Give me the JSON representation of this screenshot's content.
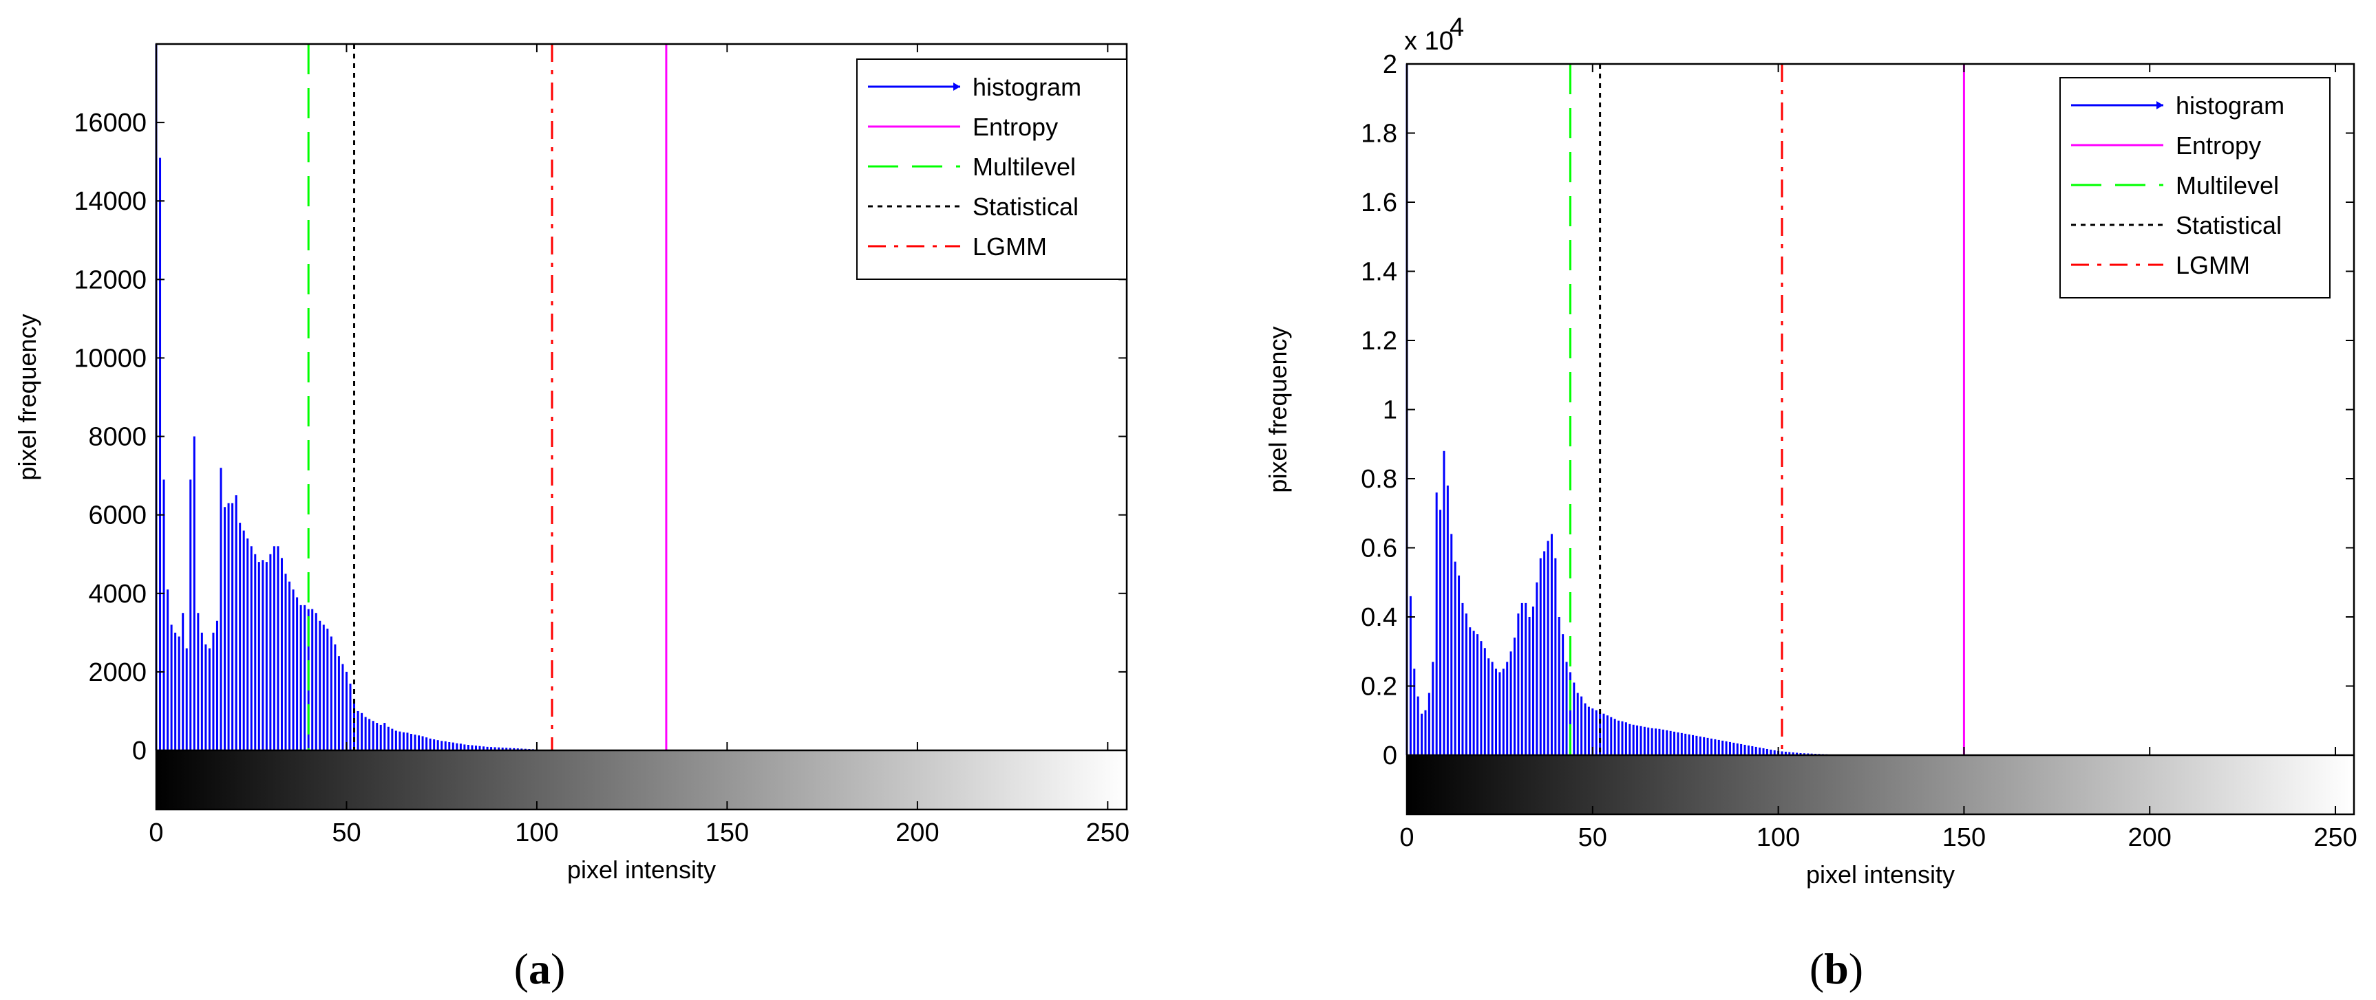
{
  "panels": [
    {
      "label_open": "(",
      "label_letter": "a",
      "label_close": ")"
    },
    {
      "label_open": "(",
      "label_letter": "b",
      "label_close": ")"
    }
  ],
  "chart_data": [
    {
      "type": "bar",
      "subtype": "histogram with vertical threshold lines and grayscale colorbar",
      "panel": "a",
      "xlabel": "pixel intensity",
      "ylabel": "pixel frequency",
      "xlim": [
        0,
        255
      ],
      "ylim": [
        0,
        18000
      ],
      "x_ticks": [
        0,
        50,
        100,
        150,
        200,
        250
      ],
      "y_ticks": [
        0,
        2000,
        4000,
        6000,
        8000,
        10000,
        12000,
        14000,
        16000
      ],
      "y_tick_labels": [
        "0",
        "2000",
        "4000",
        "6000",
        "8000",
        "10000",
        "12000",
        "14000",
        "16000"
      ],
      "y_exponent_label": "",
      "grid": false,
      "legend_position": "top-right",
      "histogram": {
        "name": "histogram",
        "color": "#0000ff",
        "x": [
          0,
          1,
          2,
          3,
          4,
          5,
          6,
          7,
          8,
          9,
          10,
          11,
          12,
          13,
          14,
          15,
          16,
          17,
          18,
          19,
          20,
          21,
          22,
          23,
          24,
          25,
          26,
          27,
          28,
          29,
          30,
          31,
          32,
          33,
          34,
          35,
          36,
          37,
          38,
          39,
          40,
          41,
          42,
          43,
          44,
          45,
          46,
          47,
          48,
          49,
          50,
          51,
          52,
          53,
          54,
          55,
          56,
          57,
          58,
          59,
          60,
          61,
          62,
          63,
          64,
          65,
          66,
          67,
          68,
          69,
          70,
          71,
          72,
          73,
          74,
          75,
          76,
          77,
          78,
          79,
          80,
          81,
          82,
          83,
          84,
          85,
          86,
          87,
          88,
          89,
          90,
          91,
          92,
          93,
          94,
          95,
          96,
          97,
          98,
          99,
          100
        ],
        "values": [
          18000,
          15100,
          6900,
          4100,
          3200,
          3000,
          2900,
          3500,
          2600,
          6900,
          8000,
          3500,
          3000,
          2700,
          2600,
          3000,
          3300,
          7200,
          6200,
          6300,
          6300,
          6500,
          5800,
          5600,
          5400,
          5200,
          5000,
          4800,
          4850,
          4800,
          5000,
          5200,
          5200,
          4900,
          4500,
          4300,
          4100,
          3900,
          3700,
          3700,
          3600,
          3600,
          3500,
          3300,
          3200,
          3100,
          2900,
          2700,
          2400,
          2200,
          2000,
          1700,
          1300,
          1000,
          950,
          850,
          800,
          750,
          700,
          650,
          700,
          600,
          550,
          500,
          480,
          460,
          450,
          420,
          400,
          380,
          360,
          330,
          300,
          280,
          260,
          240,
          230,
          210,
          200,
          180,
          170,
          150,
          140,
          130,
          120,
          110,
          100,
          90,
          85,
          80,
          75,
          70,
          65,
          60,
          55,
          50,
          45,
          40,
          35,
          30,
          25
        ]
      },
      "thresholds": [
        {
          "name": "Entropy",
          "x": 134,
          "color": "#ff00ff",
          "style": "solid"
        },
        {
          "name": "Multilevel",
          "x": 40,
          "color": "#00ff00",
          "style": "dashed"
        },
        {
          "name": "Statistical",
          "x": 52,
          "color": "#000000",
          "style": "dotted"
        },
        {
          "name": "LGMM",
          "x": 104,
          "color": "#ff0000",
          "style": "dashdot"
        }
      ]
    },
    {
      "type": "bar",
      "subtype": "histogram with vertical threshold lines and grayscale colorbar",
      "panel": "b",
      "xlabel": "pixel intensity",
      "ylabel": "pixel frequency",
      "xlim": [
        0,
        255
      ],
      "ylim": [
        0,
        20000
      ],
      "x_ticks": [
        0,
        50,
        100,
        150,
        200,
        250
      ],
      "y_ticks": [
        0,
        2000,
        4000,
        6000,
        8000,
        10000,
        12000,
        14000,
        16000,
        18000,
        20000
      ],
      "y_tick_labels": [
        "0",
        "0.2",
        "0.4",
        "0.6",
        "0.8",
        "1",
        "1.2",
        "1.4",
        "1.6",
        "1.8",
        "2"
      ],
      "y_exponent_label": "x 10",
      "y_exponent_power": "4",
      "grid": false,
      "legend_position": "top-right",
      "histogram": {
        "name": "histogram",
        "color": "#0000ff",
        "x": [
          0,
          1,
          2,
          3,
          4,
          5,
          6,
          7,
          8,
          9,
          10,
          11,
          12,
          13,
          14,
          15,
          16,
          17,
          18,
          19,
          20,
          21,
          22,
          23,
          24,
          25,
          26,
          27,
          28,
          29,
          30,
          31,
          32,
          33,
          34,
          35,
          36,
          37,
          38,
          39,
          40,
          41,
          42,
          43,
          44,
          45,
          46,
          47,
          48,
          49,
          50,
          51,
          52,
          53,
          54,
          55,
          56,
          57,
          58,
          59,
          60,
          61,
          62,
          63,
          64,
          65,
          66,
          67,
          68,
          69,
          70,
          71,
          72,
          73,
          74,
          75,
          76,
          77,
          78,
          79,
          80,
          81,
          82,
          83,
          84,
          85,
          86,
          87,
          88,
          89,
          90,
          91,
          92,
          93,
          94,
          95,
          96,
          97,
          98,
          99,
          100,
          101,
          102,
          103,
          104,
          105,
          106,
          107,
          108,
          109,
          110,
          111,
          112,
          113,
          114,
          115,
          116,
          117,
          118,
          119,
          120
        ],
        "values": [
          20000,
          4600,
          2500,
          1700,
          1200,
          1300,
          1800,
          2700,
          7600,
          7100,
          8800,
          7800,
          6400,
          5600,
          5200,
          4400,
          4100,
          3700,
          3600,
          3500,
          3300,
          3100,
          2800,
          2700,
          2500,
          2400,
          2500,
          2700,
          3000,
          3400,
          4100,
          4400,
          4400,
          4000,
          4300,
          5000,
          5700,
          5900,
          6200,
          6400,
          5700,
          4000,
          3500,
          2700,
          2400,
          2100,
          1800,
          1700,
          1500,
          1400,
          1350,
          1300,
          1250,
          1200,
          1150,
          1100,
          1050,
          1000,
          980,
          950,
          900,
          880,
          860,
          840,
          820,
          800,
          780,
          770,
          760,
          740,
          720,
          700,
          680,
          660,
          640,
          620,
          600,
          580,
          560,
          540,
          520,
          500,
          480,
          460,
          440,
          420,
          400,
          380,
          360,
          340,
          320,
          300,
          280,
          260,
          240,
          220,
          200,
          180,
          160,
          140,
          120,
          110,
          100,
          90,
          80,
          70,
          60,
          55,
          50,
          45,
          40,
          35,
          30,
          25,
          20,
          20,
          15,
          15,
          10,
          10,
          10
        ]
      },
      "thresholds": [
        {
          "name": "Entropy",
          "x": 150,
          "color": "#ff00ff",
          "style": "solid"
        },
        {
          "name": "Multilevel",
          "x": 44,
          "color": "#00ff00",
          "style": "dashed"
        },
        {
          "name": "Statistical",
          "x": 52,
          "color": "#000000",
          "style": "dotted"
        },
        {
          "name": "LGMM",
          "x": 101,
          "color": "#ff0000",
          "style": "dashdot"
        }
      ]
    }
  ],
  "legend_entries": [
    "histogram",
    "Entropy",
    "Multilevel",
    "Statistical",
    "LGMM"
  ]
}
